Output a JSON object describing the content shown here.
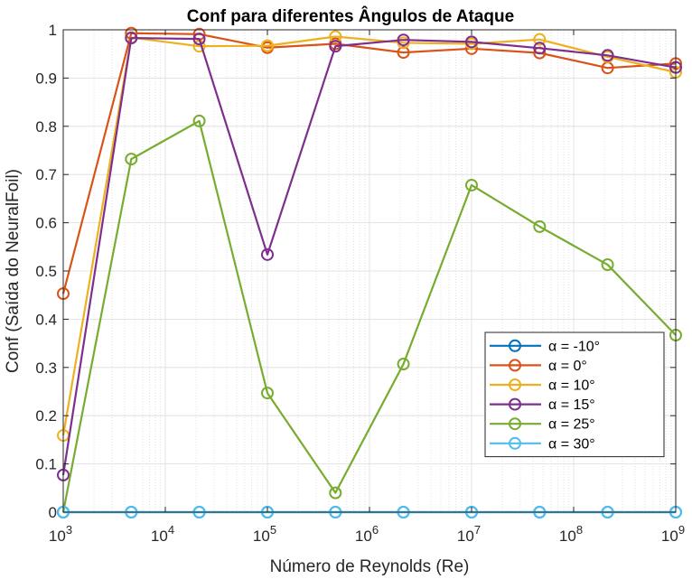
{
  "chart_data": {
    "type": "line",
    "title": "Conf para diferentes Ângulos de Ataque",
    "xlabel": "Número de Reynolds (Re)",
    "ylabel": "Conf (Saída do NeuralFoil)",
    "x_scale": "log",
    "xlim": [
      1000,
      1000000000
    ],
    "ylim": [
      0,
      1
    ],
    "grid": true,
    "minor_grid": true,
    "legend_position": "bottom-right",
    "x_ticks": [
      {
        "value": 1000,
        "base": "10",
        "exp": "3"
      },
      {
        "value": 10000,
        "base": "10",
        "exp": "4"
      },
      {
        "value": 100000,
        "base": "10",
        "exp": "5"
      },
      {
        "value": 1000000,
        "base": "10",
        "exp": "6"
      },
      {
        "value": 10000000,
        "base": "10",
        "exp": "7"
      },
      {
        "value": 100000000,
        "base": "10",
        "exp": "8"
      },
      {
        "value": 1000000000,
        "base": "10",
        "exp": "9"
      }
    ],
    "y_ticks": [
      {
        "value": 0,
        "label": "0"
      },
      {
        "value": 0.1,
        "label": "0.1"
      },
      {
        "value": 0.2,
        "label": "0.2"
      },
      {
        "value": 0.3,
        "label": "0.3"
      },
      {
        "value": 0.4,
        "label": "0.4"
      },
      {
        "value": 0.5,
        "label": "0.5"
      },
      {
        "value": 0.6,
        "label": "0.6"
      },
      {
        "value": 0.7,
        "label": "0.7"
      },
      {
        "value": 0.8,
        "label": "0.8"
      },
      {
        "value": 0.9,
        "label": "0.9"
      },
      {
        "value": 1,
        "label": "1"
      }
    ],
    "x": [
      1000,
      4640,
      21500,
      100000,
      464000,
      2150000,
      10000000,
      46400000,
      215000000,
      1000000000
    ],
    "series": [
      {
        "name": "α = -10°",
        "color": "#0072BD",
        "values": [
          0,
          0,
          0,
          0,
          0,
          0,
          0,
          0,
          0,
          0
        ]
      },
      {
        "name": "α = 0°",
        "color": "#D95319",
        "values": [
          0.453,
          0.993,
          0.991,
          0.963,
          0.971,
          0.953,
          0.961,
          0.952,
          0.921,
          0.93
        ]
      },
      {
        "name": "α = 10°",
        "color": "#EDB120",
        "values": [
          0.159,
          0.984,
          0.966,
          0.967,
          0.986,
          0.973,
          0.971,
          0.98,
          0.944,
          0.912
        ]
      },
      {
        "name": "α = 15°",
        "color": "#7E2F8E",
        "values": [
          0.077,
          0.983,
          0.981,
          0.534,
          0.966,
          0.979,
          0.975,
          0.962,
          0.947,
          0.922
        ]
      },
      {
        "name": "α = 25°",
        "color": "#77AC30",
        "values": [
          0,
          0.732,
          0.811,
          0.247,
          0.04,
          0.307,
          0.678,
          0.592,
          0.513,
          0.367
        ]
      },
      {
        "name": "α = 30°",
        "color": "#4DBEEE",
        "values": [
          0,
          0,
          0,
          0,
          0,
          0,
          0,
          0,
          0,
          0
        ]
      }
    ]
  }
}
